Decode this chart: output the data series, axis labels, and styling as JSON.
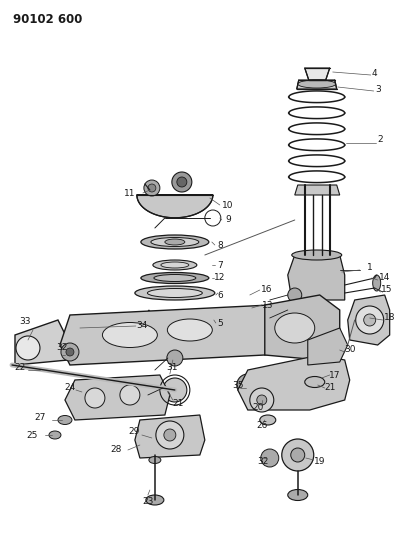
{
  "title": "90102 600",
  "bg": "#ffffff",
  "lc": "#1a1a1a",
  "tc": "#1a1a1a",
  "fig_w": 3.97,
  "fig_h": 5.33,
  "dpi": 100
}
